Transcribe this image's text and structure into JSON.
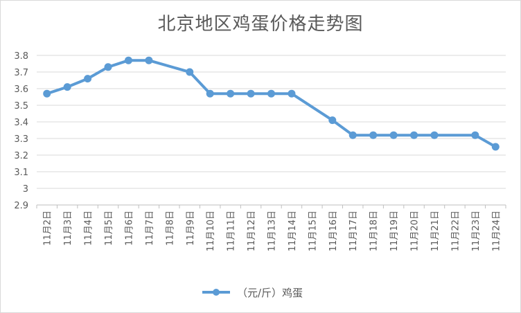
{
  "chart_data": {
    "type": "line",
    "title": "北京地区鸡蛋价格走势图",
    "categories": [
      "11月2日",
      "11月3日",
      "11月4日",
      "11月5日",
      "11月6日",
      "11月7日",
      "11月8日",
      "11月9日",
      "11月10日",
      "11月11日",
      "11月12日",
      "11月13日",
      "11月14日",
      "11月15日",
      "11月16日",
      "11月17日",
      "11月18日",
      "11月19日",
      "11月20日",
      "11月21日",
      "11月22日",
      "11月23日",
      "11月24日"
    ],
    "series": [
      {
        "name": "（元/斤）鸡蛋",
        "color": "#5b9bd5",
        "values": [
          3.57,
          3.61,
          3.66,
          3.73,
          3.77,
          3.77,
          null,
          3.7,
          3.57,
          3.57,
          3.57,
          3.57,
          3.57,
          null,
          3.41,
          3.32,
          3.32,
          3.32,
          3.32,
          3.32,
          null,
          3.32,
          3.25
        ]
      }
    ],
    "ylim": [
      2.9,
      3.8
    ],
    "yticks": [
      "2.9",
      "3",
      "3.1",
      "3.2",
      "3.3",
      "3.4",
      "3.5",
      "3.6",
      "3.7",
      "3.8"
    ],
    "grid": true,
    "legend_position": "bottom"
  }
}
